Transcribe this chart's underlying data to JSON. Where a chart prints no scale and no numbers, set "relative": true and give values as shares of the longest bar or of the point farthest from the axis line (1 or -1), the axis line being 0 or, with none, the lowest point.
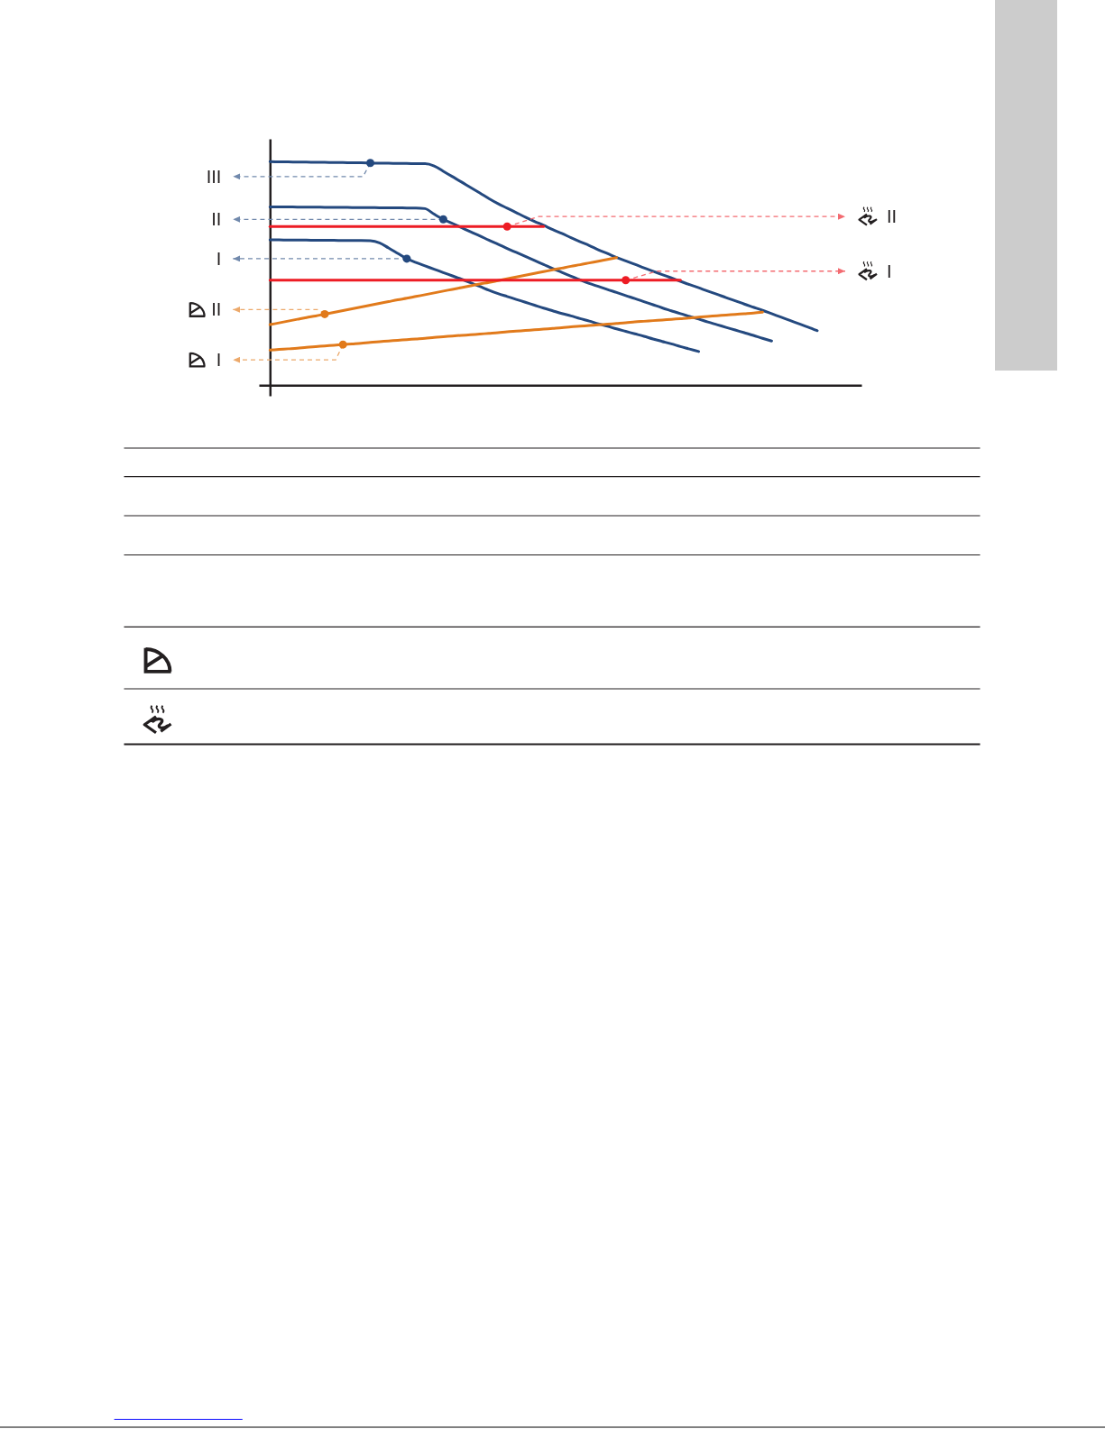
{
  "chart_data": {
    "type": "line",
    "relative": true,
    "categories": [
      null,
      null,
      null,
      null,
      null,
      null,
      null,
      null,
      null,
      null,
      null,
      null,
      null,
      null,
      null,
      null,
      null,
      null,
      null,
      null,
      null,
      null,
      null,
      null,
      null,
      null,
      null,
      null,
      null,
      null,
      null,
      null,
      null,
      null,
      null,
      null,
      null,
      null,
      null,
      null,
      null,
      null,
      null,
      null,
      null,
      null,
      null,
      null,
      null,
      null,
      null,
      null,
      null,
      null,
      null,
      null,
      null,
      null,
      null,
      null,
      null
    ],
    "series": [
      {
        "name": "III",
        "color": "#24497f",
        "values": [
          1.0,
          0.999,
          0.999,
          0.998,
          0.998,
          0.997,
          0.997,
          0.996,
          0.996,
          0.995,
          0.995,
          0.994,
          0.993,
          0.993,
          0.992,
          0.992,
          0.991,
          0.991,
          0.981,
          0.957,
          0.933,
          0.909,
          0.884,
          0.86,
          0.835,
          0.812,
          0.792,
          0.772,
          0.752,
          0.733,
          0.715,
          0.696,
          0.679,
          0.66,
          0.642,
          0.625,
          0.606,
          0.589,
          0.571,
          0.556,
          0.541,
          0.525,
          0.51,
          0.495,
          0.48,
          0.465,
          0.45,
          0.436,
          0.421,
          0.407,
          0.392,
          0.378,
          0.363,
          0.349,
          0.335,
          0.32,
          0.305,
          0.29,
          0.275,
          0.26,
          0.244
        ]
      },
      {
        "name": "II",
        "color": "#24497f",
        "values": [
          0.798,
          0.798,
          0.798,
          0.797,
          0.797,
          0.797,
          0.796,
          0.796,
          0.796,
          0.795,
          0.795,
          0.795,
          0.794,
          0.794,
          0.794,
          0.793,
          0.793,
          0.79,
          0.765,
          0.742,
          0.724,
          0.705,
          0.686,
          0.668,
          0.649,
          0.631,
          0.612,
          0.594,
          0.576,
          0.558,
          0.54,
          0.522,
          0.505,
          0.488,
          0.471,
          0.455,
          0.442,
          0.428,
          0.415,
          0.401,
          0.388,
          0.374,
          0.36,
          0.346,
          0.333,
          0.32,
          0.308,
          0.296,
          0.283,
          0.271,
          0.259,
          0.247,
          0.235,
          0.223,
          0.21,
          0.198,
          null,
          null,
          null,
          null,
          null
        ]
      },
      {
        "name": "I",
        "color": "#24497f",
        "values": [
          0.65,
          0.65,
          0.649,
          0.649,
          0.649,
          0.648,
          0.648,
          0.648,
          0.647,
          0.647,
          0.647,
          0.646,
          0.637,
          0.614,
          0.59,
          0.566,
          0.549,
          0.534,
          0.519,
          0.504,
          0.489,
          0.474,
          0.458,
          0.442,
          0.425,
          0.41,
          0.397,
          0.384,
          0.371,
          0.358,
          0.345,
          0.333,
          0.321,
          0.31,
          0.298,
          0.287,
          0.275,
          0.264,
          0.252,
          0.241,
          0.23,
          0.219,
          0.207,
          0.196,
          0.185,
          0.173,
          0.162,
          0.151,
          null,
          null,
          null,
          null,
          null,
          null,
          null,
          null,
          null,
          null,
          null,
          null,
          null
        ]
      },
      {
        "name": "II",
        "color": "#e17a1b",
        "values": [
          0.271,
          0.279,
          0.287,
          0.295,
          0.303,
          0.31,
          0.318,
          0.326,
          0.334,
          0.342,
          0.35,
          0.358,
          0.366,
          0.374,
          0.382,
          0.389,
          0.397,
          0.405,
          0.413,
          0.421,
          0.429,
          0.437,
          0.445,
          0.453,
          0.46,
          0.468,
          0.476,
          0.484,
          0.492,
          0.5,
          0.508,
          0.516,
          0.524,
          0.532,
          0.539,
          0.547,
          0.555,
          0.563,
          0.571,
          null,
          null,
          null,
          null,
          null,
          null,
          null,
          null,
          null,
          null,
          null,
          null,
          null,
          null,
          null,
          null,
          null,
          null,
          null,
          null,
          null,
          null
        ]
      },
      {
        "name": "I",
        "color": "#e17a1b",
        "values": [
          0.157,
          0.16,
          0.163,
          0.166,
          0.17,
          0.173,
          0.176,
          0.179,
          0.182,
          0.185,
          0.188,
          0.192,
          0.195,
          0.198,
          0.201,
          0.204,
          0.207,
          0.21,
          0.214,
          0.217,
          0.22,
          0.223,
          0.226,
          0.229,
          0.232,
          0.235,
          0.239,
          0.242,
          0.245,
          0.248,
          0.251,
          0.254,
          0.257,
          0.261,
          0.264,
          0.267,
          0.27,
          0.273,
          0.276,
          0.279,
          0.283,
          0.286,
          0.289,
          0.292,
          0.295,
          0.298,
          0.301,
          0.305,
          0.308,
          0.311,
          0.314,
          0.317,
          0.32,
          0.323,
          0.327,
          null,
          null,
          null,
          null,
          null,
          null
        ]
      },
      {
        "color": "#ed1c24",
        "values": [
          0.71,
          0.71,
          0.71,
          0.71,
          0.71,
          0.71,
          0.71,
          0.71,
          0.71,
          0.71,
          0.71,
          0.71,
          0.71,
          0.71,
          0.71,
          0.71,
          0.71,
          0.71,
          0.71,
          0.71,
          0.71,
          0.71,
          0.71,
          0.71,
          0.71,
          0.71,
          0.71,
          0.71,
          0.71,
          0.71,
          0.71,
          null,
          null,
          null,
          null,
          null,
          null,
          null,
          null,
          null,
          null,
          null,
          null,
          null,
          null,
          null,
          null,
          null,
          null,
          null,
          null,
          null,
          null,
          null,
          null,
          null,
          null,
          null,
          null,
          null,
          null
        ]
      },
      {
        "color": "#ed1c24",
        "values": [
          0.47,
          0.47,
          0.47,
          0.47,
          0.47,
          0.47,
          0.47,
          0.47,
          0.47,
          0.47,
          0.47,
          0.47,
          0.47,
          0.47,
          0.47,
          0.47,
          0.47,
          0.47,
          0.47,
          0.47,
          0.47,
          0.47,
          0.47,
          0.47,
          0.47,
          0.47,
          0.47,
          0.47,
          0.47,
          0.47,
          0.47,
          0.47,
          0.47,
          0.47,
          0.47,
          0.47,
          0.47,
          0.47,
          0.47,
          0.47,
          0.47,
          0.47,
          0.47,
          0.47,
          0.47,
          0.47,
          null,
          null,
          null,
          null,
          null,
          null,
          null,
          null,
          null,
          null,
          null,
          null,
          null,
          null,
          null
        ]
      }
    ],
    "annotations": [
      "II",
      "I"
    ]
  }
}
